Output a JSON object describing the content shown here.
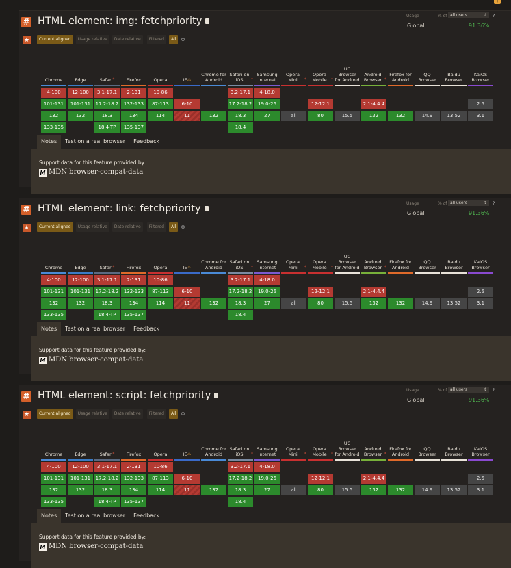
{
  "usage": {
    "label": "Usage",
    "pct_of": "% of",
    "users_select": "all users",
    "help": "?",
    "global_label": "Global",
    "global_pct": "91.36%"
  },
  "filters": {
    "current_aligned": "Current aligned",
    "usage_relative": "Usage relative",
    "date_relative": "Date relative",
    "filtered": "Filtered",
    "all": "All"
  },
  "tabs": [
    "Notes",
    "Test on a real browser",
    "Feedback"
  ],
  "support_text": "Support data for this feature provided by:",
  "mdn_logo": "M",
  "mdn_text": "MDN browser-compat-data",
  "features": [
    {
      "title": "HTML element: img: fetchpriority"
    },
    {
      "title": "HTML element: link: fetchpriority"
    },
    {
      "title": "HTML element: script: fetchpriority"
    }
  ],
  "browsers": [
    {
      "name": "Chrome",
      "color": "#4a8ad6",
      "note": false
    },
    {
      "name": "Edge",
      "color": "#3a7cc6",
      "note": false
    },
    {
      "name": "Safari",
      "color": "#5a6a82",
      "note": true
    },
    {
      "name": "Firefox",
      "color": "#e06a2a",
      "note": false
    },
    {
      "name": "Opera",
      "color": "#c83030",
      "note": false
    },
    {
      "name": "IE",
      "color": "#3a6ac8",
      "note": false,
      "warn": true
    },
    {
      "name": "Chrome for Android",
      "color": "#4a8ad6",
      "note": false
    },
    {
      "name": "Safari on iOS",
      "color": "#7a8aa2",
      "note": true
    },
    {
      "name": "Samsung Internet",
      "color": "#7a5ad0",
      "note": false
    },
    {
      "name": "Opera Mini",
      "color": "#c83030",
      "note": true
    },
    {
      "name": "Opera Mobile",
      "color": "#c83030",
      "note": true
    },
    {
      "name": "UC Browser for Android",
      "color": "#e8e2d8",
      "note": false
    },
    {
      "name": "Android Browser",
      "color": "#78b03a",
      "note": true
    },
    {
      "name": "Firefox for Android",
      "color": "#e06a2a",
      "note": false
    },
    {
      "name": "QQ Browser",
      "color": "#e8e2d8",
      "note": false
    },
    {
      "name": "Baidu Browser",
      "color": "#e8e2d8",
      "note": false
    },
    {
      "name": "KaiOS Browser",
      "color": "#8a4ad0",
      "note": false
    }
  ],
  "cells": [
    [
      [
        "4-100",
        "n"
      ],
      [
        "101-131",
        "y"
      ],
      [
        "132",
        "y"
      ],
      [
        "133-135",
        "y"
      ]
    ],
    [
      [
        "12-100",
        "n"
      ],
      [
        "101-131",
        "y"
      ],
      [
        "132",
        "y"
      ],
      null
    ],
    [
      [
        "3.1-17.1",
        "n"
      ],
      [
        "17.2-18.2",
        "y"
      ],
      [
        "18.3",
        "y"
      ],
      [
        "18.4-TP",
        "y"
      ]
    ],
    [
      [
        "2-131",
        "n"
      ],
      [
        "132-133",
        "y"
      ],
      [
        "134",
        "y"
      ],
      [
        "135-137",
        "y"
      ]
    ],
    [
      [
        "10-86",
        "n"
      ],
      [
        "87-113",
        "y"
      ],
      [
        "114",
        "y"
      ],
      null
    ],
    [
      null,
      [
        "6-10",
        "n"
      ],
      [
        "11",
        "p"
      ],
      null
    ],
    [
      null,
      null,
      [
        "132",
        "y"
      ],
      null
    ],
    [
      [
        "3.2-17.1",
        "n"
      ],
      [
        "17.2-18.2",
        "y"
      ],
      [
        "18.3",
        "y"
      ],
      [
        "18.4",
        "y"
      ]
    ],
    [
      [
        "4-18.0",
        "n"
      ],
      [
        "19.0-26",
        "y"
      ],
      [
        "27",
        "y"
      ],
      null
    ],
    [
      null,
      null,
      [
        "all",
        "u"
      ],
      null
    ],
    [
      null,
      [
        "12-12.1",
        "n"
      ],
      [
        "80",
        "y"
      ],
      null
    ],
    [
      null,
      null,
      [
        "15.5",
        "u"
      ],
      null
    ],
    [
      null,
      [
        "2.1-4.4.4",
        "n"
      ],
      [
        "132",
        "y"
      ],
      null
    ],
    [
      null,
      null,
      [
        "132",
        "y"
      ],
      null
    ],
    [
      null,
      null,
      [
        "14.9",
        "u"
      ],
      null
    ],
    [
      null,
      null,
      [
        "13.52",
        "u"
      ],
      null
    ],
    [
      null,
      [
        "2.5",
        "u"
      ],
      [
        "3.1",
        "u"
      ],
      null
    ]
  ]
}
